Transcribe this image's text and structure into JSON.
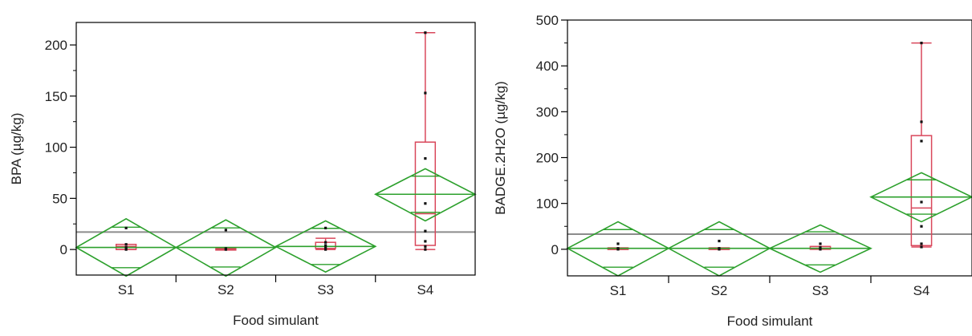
{
  "colors": {
    "box": "#d9475b",
    "diamond": "#2ca02c",
    "grand_mean": "#8c8c8c",
    "frame": "#000000",
    "points": "#111111"
  },
  "chart_data": [
    {
      "type": "box",
      "xlabel": "Food simulant",
      "ylabel": "BPA (µg/kg)",
      "categories": [
        "S1",
        "S2",
        "S3",
        "S4"
      ],
      "ylim": [
        -25,
        222
      ],
      "yticks": [
        0,
        50,
        100,
        150,
        200
      ],
      "grand_mean": 17,
      "groups": [
        {
          "name": "S1",
          "points": [
            0,
            2,
            5,
            21
          ],
          "box": {
            "min": 0,
            "q1": 0,
            "median": 3,
            "q3": 5,
            "max": 5
          },
          "mean_diamond": {
            "mean": 2,
            "lower": -26,
            "upper": 30
          }
        },
        {
          "name": "S2",
          "points": [
            0,
            1,
            19
          ],
          "box": {
            "min": 0,
            "q1": 0,
            "median": 0.5,
            "q3": 1,
            "max": 1
          },
          "mean_diamond": {
            "mean": 2,
            "lower": -26,
            "upper": 29
          }
        },
        {
          "name": "S3",
          "points": [
            0,
            2,
            4,
            7,
            21
          ],
          "box": {
            "min": 0,
            "q1": 1,
            "median": 3,
            "q3": 7,
            "max": 11
          },
          "mean_diamond": {
            "mean": 3,
            "lower": -22,
            "upper": 28
          }
        },
        {
          "name": "S4",
          "points": [
            0,
            3,
            8,
            18,
            45,
            89,
            153,
            212
          ],
          "box": {
            "min": 0,
            "q1": 4,
            "median": 35,
            "q3": 105,
            "max": 212
          },
          "mean_diamond": {
            "mean": 54,
            "lower": 28,
            "upper": 79
          }
        }
      ]
    },
    {
      "type": "box",
      "xlabel": "Food simulant",
      "ylabel": "BADGE.2H2O (µg/kg)",
      "categories": [
        "S1",
        "S2",
        "S3",
        "S4"
      ],
      "ylim": [
        -58,
        500
      ],
      "yticks": [
        0,
        100,
        200,
        300,
        400,
        500
      ],
      "grand_mean": 33,
      "groups": [
        {
          "name": "S1",
          "points": [
            0,
            2,
            12
          ],
          "box": {
            "min": 0,
            "q1": 0,
            "median": 1,
            "q3": 3,
            "max": 3
          },
          "mean_diamond": {
            "mean": 2,
            "lower": -58,
            "upper": 60
          }
        },
        {
          "name": "S2",
          "points": [
            0,
            2,
            18
          ],
          "box": {
            "min": 0,
            "q1": 0,
            "median": 1,
            "q3": 3,
            "max": 3
          },
          "mean_diamond": {
            "mean": 2,
            "lower": -58,
            "upper": 60
          }
        },
        {
          "name": "S3",
          "points": [
            0,
            4,
            12
          ],
          "box": {
            "min": 0,
            "q1": 0,
            "median": 2,
            "q3": 6,
            "max": 6
          },
          "mean_diamond": {
            "mean": 2,
            "lower": -50,
            "upper": 53
          }
        },
        {
          "name": "S4",
          "points": [
            5,
            12,
            50,
            103,
            236,
            278,
            450
          ],
          "box": {
            "min": 5,
            "q1": 8,
            "median": 90,
            "q3": 248,
            "max": 450
          },
          "mean_diamond": {
            "mean": 114,
            "lower": 60,
            "upper": 167
          }
        }
      ]
    }
  ]
}
